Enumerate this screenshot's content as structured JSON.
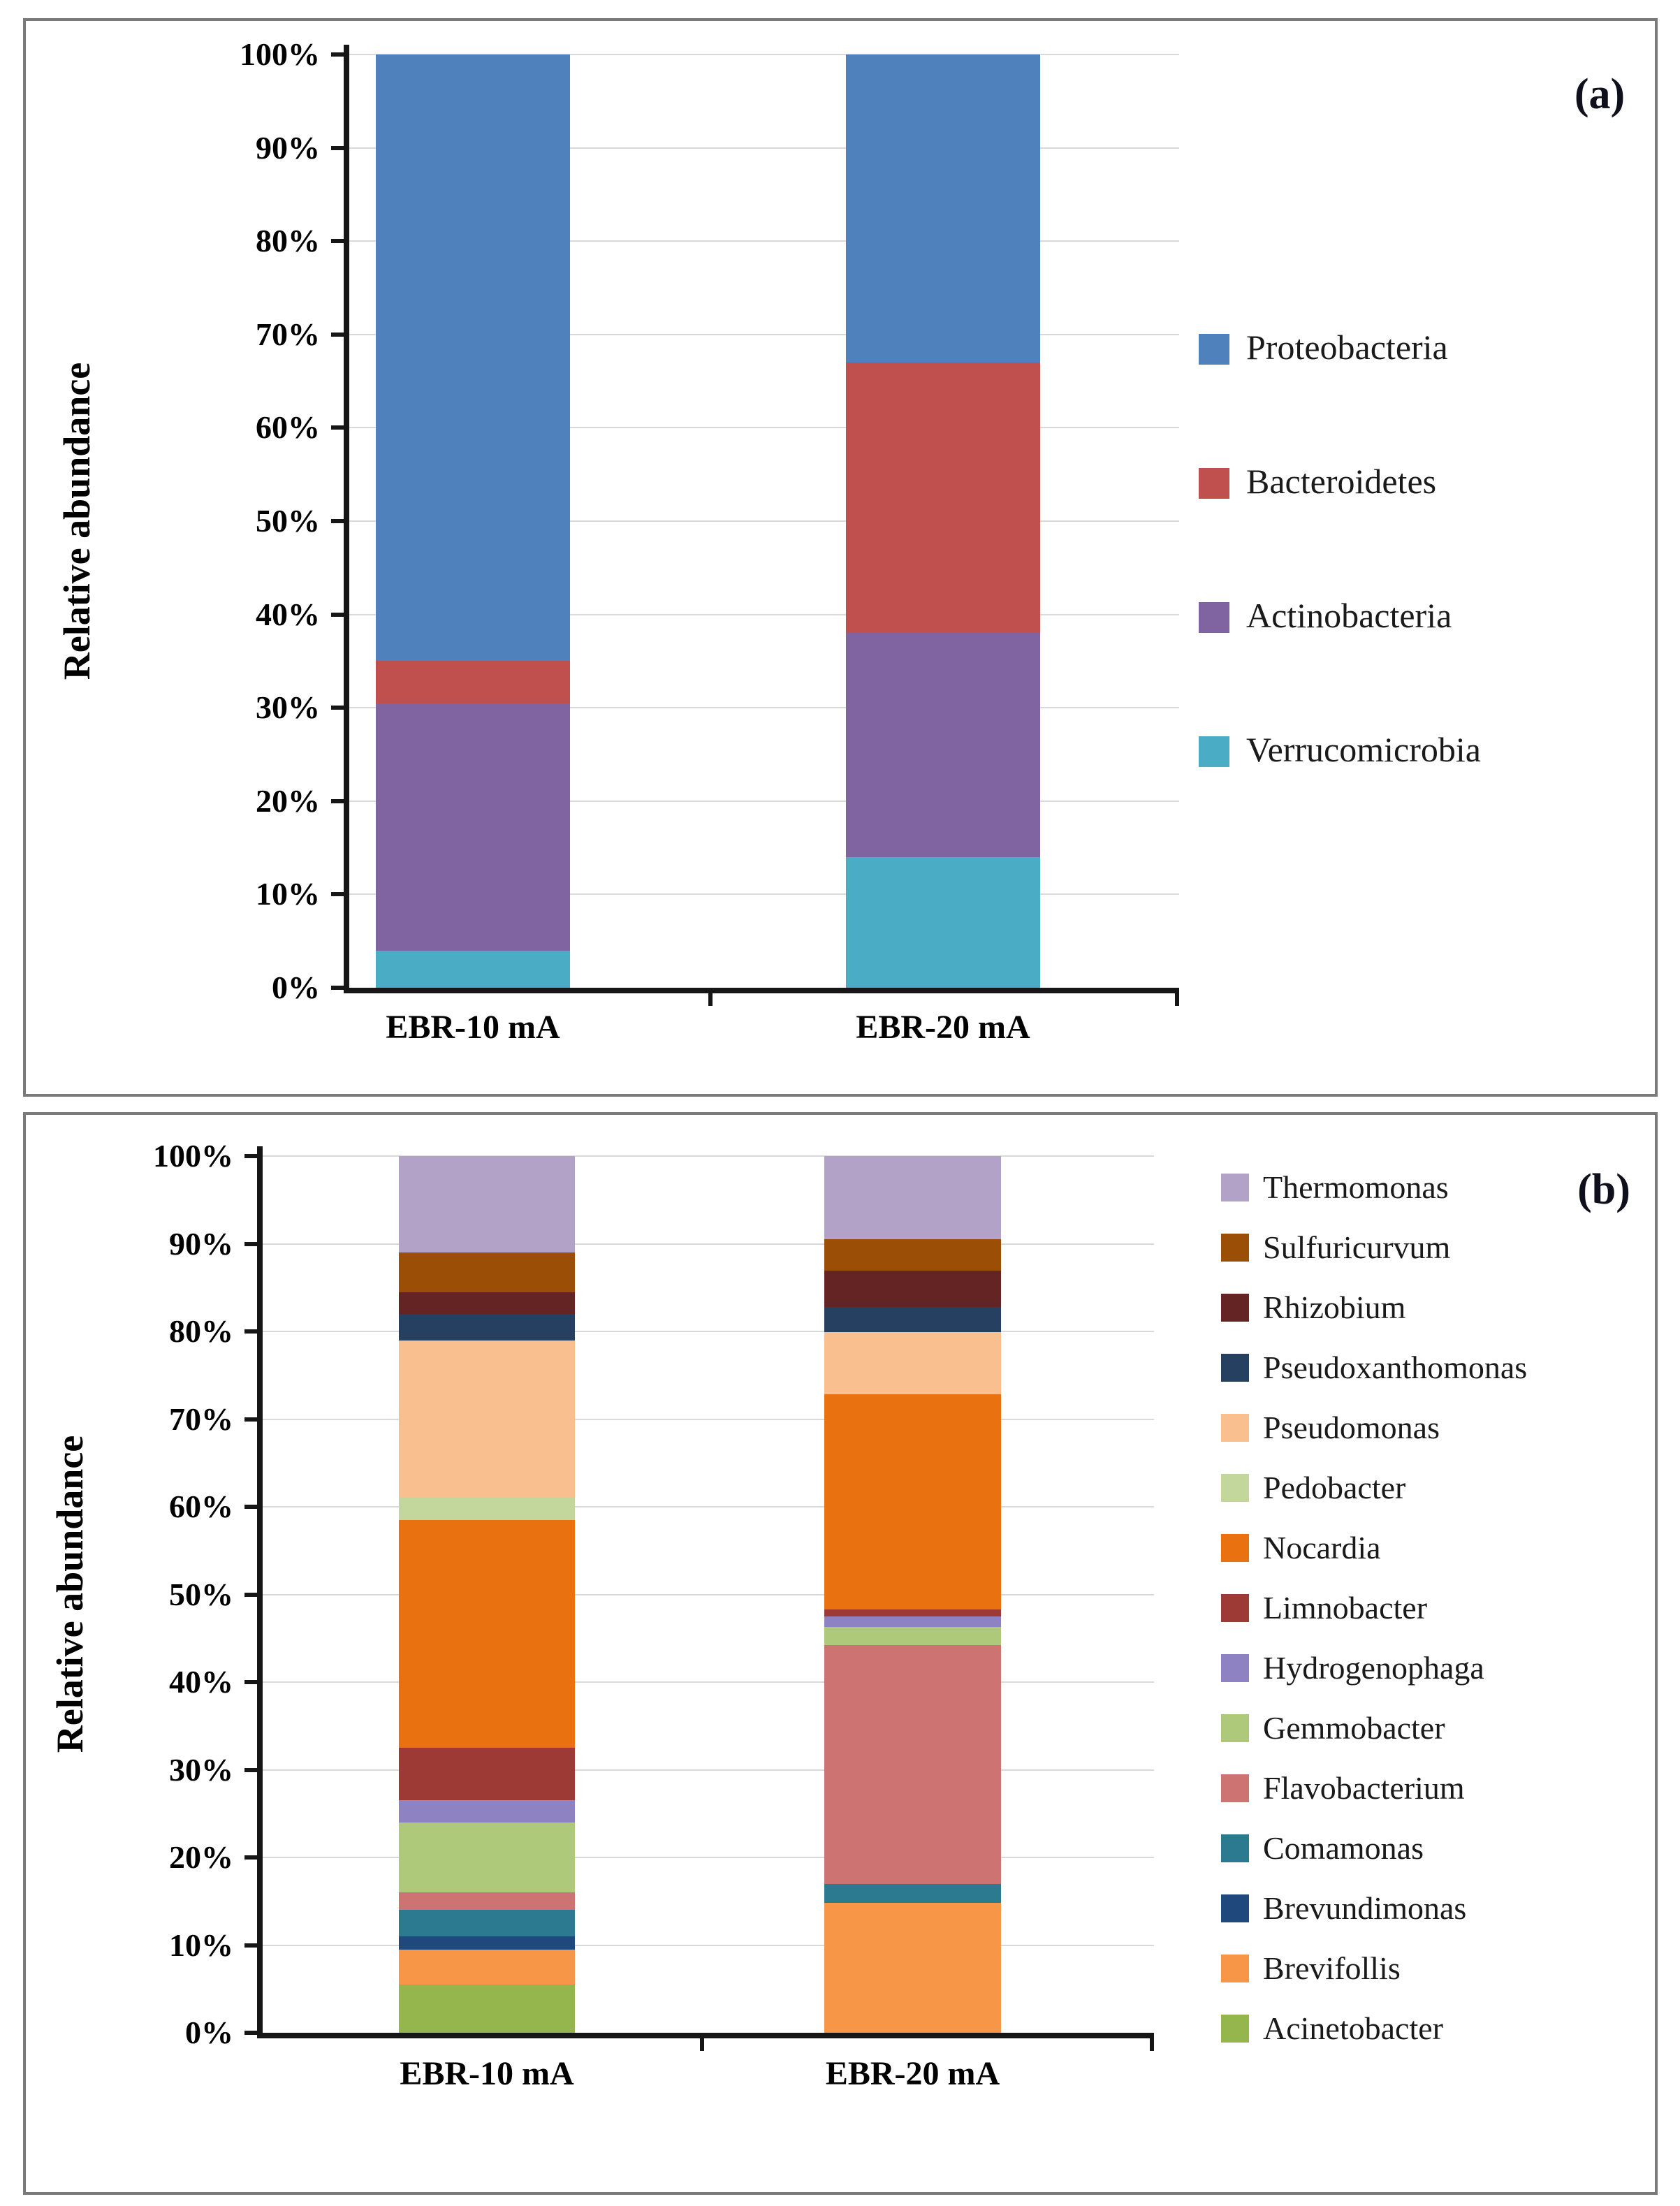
{
  "figure": {
    "ylabel": "Relative abundance",
    "panel_a_label": "(a)",
    "panel_b_label": "(b)"
  },
  "chart_data": [
    {
      "type": "bar",
      "stacked": true,
      "panel_label": "(a)",
      "title": "",
      "xlabel": "",
      "ylabel": "Relative abundance",
      "categories": [
        "EBR-10 mA",
        "EBR-20 mA"
      ],
      "ylim": [
        0,
        100
      ],
      "ytick_labels": [
        "0%",
        "10%",
        "20%",
        "30%",
        "40%",
        "50%",
        "60%",
        "70%",
        "80%",
        "90%",
        "100%"
      ],
      "grid": true,
      "legend_position": "right",
      "series": [
        {
          "name": "Proteobacteria",
          "color": "#4F81BD",
          "values": [
            65.0,
            33.0
          ]
        },
        {
          "name": "Bacteroidetes",
          "color": "#C0504D",
          "values": [
            4.5,
            29.0
          ]
        },
        {
          "name": "Actinobacteria",
          "color": "#8064A2",
          "values": [
            26.5,
            24.0
          ]
        },
        {
          "name": "Verrucomicrobia",
          "color": "#4BACC6",
          "values": [
            4.0,
            14.0
          ]
        }
      ]
    },
    {
      "type": "bar",
      "stacked": true,
      "panel_label": "(b)",
      "title": "",
      "xlabel": "",
      "ylabel": "Relative abundance",
      "categories": [
        "EBR-10 mA",
        "EBR-20 mA"
      ],
      "ylim": [
        0,
        100
      ],
      "ytick_labels": [
        "0%",
        "10%",
        "20%",
        "30%",
        "40%",
        "50%",
        "60%",
        "70%",
        "80%",
        "90%",
        "100%"
      ],
      "grid": true,
      "legend_position": "right",
      "series": [
        {
          "name": "Thermomonas",
          "color": "#B3A2C7",
          "values": [
            11.0,
            9.5
          ]
        },
        {
          "name": "Sulfuricurvum",
          "color": "#9A4E06",
          "values": [
            4.5,
            3.6
          ]
        },
        {
          "name": "Rhizobium",
          "color": "#632423",
          "values": [
            2.5,
            4.1
          ]
        },
        {
          "name": "Pseudoxanthomonas",
          "color": "#254061",
          "values": [
            3.0,
            2.9
          ]
        },
        {
          "name": "Pseudomonas",
          "color": "#FABF8F",
          "values": [
            18.0,
            7.1
          ]
        },
        {
          "name": "Pedobacter",
          "color": "#C3D69B",
          "values": [
            2.5,
            0.0
          ]
        },
        {
          "name": "Nocardia",
          "color": "#E9710F",
          "values": [
            26.0,
            24.5
          ]
        },
        {
          "name": "Limnobacter",
          "color": "#9E3A36",
          "values": [
            6.0,
            0.8
          ]
        },
        {
          "name": "Hydrogenophaga",
          "color": "#8E82C2",
          "values": [
            2.5,
            1.2
          ]
        },
        {
          "name": "Gemmobacter",
          "color": "#AFC97A",
          "values": [
            8.0,
            2.1
          ]
        },
        {
          "name": "Flavobacterium",
          "color": "#CD7371",
          "values": [
            2.0,
            27.2
          ]
        },
        {
          "name": "Comamonas",
          "color": "#2B7A90",
          "values": [
            3.0,
            2.2
          ]
        },
        {
          "name": "Brevundimonas",
          "color": "#1F497D",
          "values": [
            1.5,
            0.0
          ]
        },
        {
          "name": "Brevifollis",
          "color": "#F79646",
          "values": [
            4.0,
            14.8
          ]
        },
        {
          "name": "Acinetobacter",
          "color": "#95B54D",
          "values": [
            5.5,
            0.0
          ]
        }
      ]
    }
  ]
}
